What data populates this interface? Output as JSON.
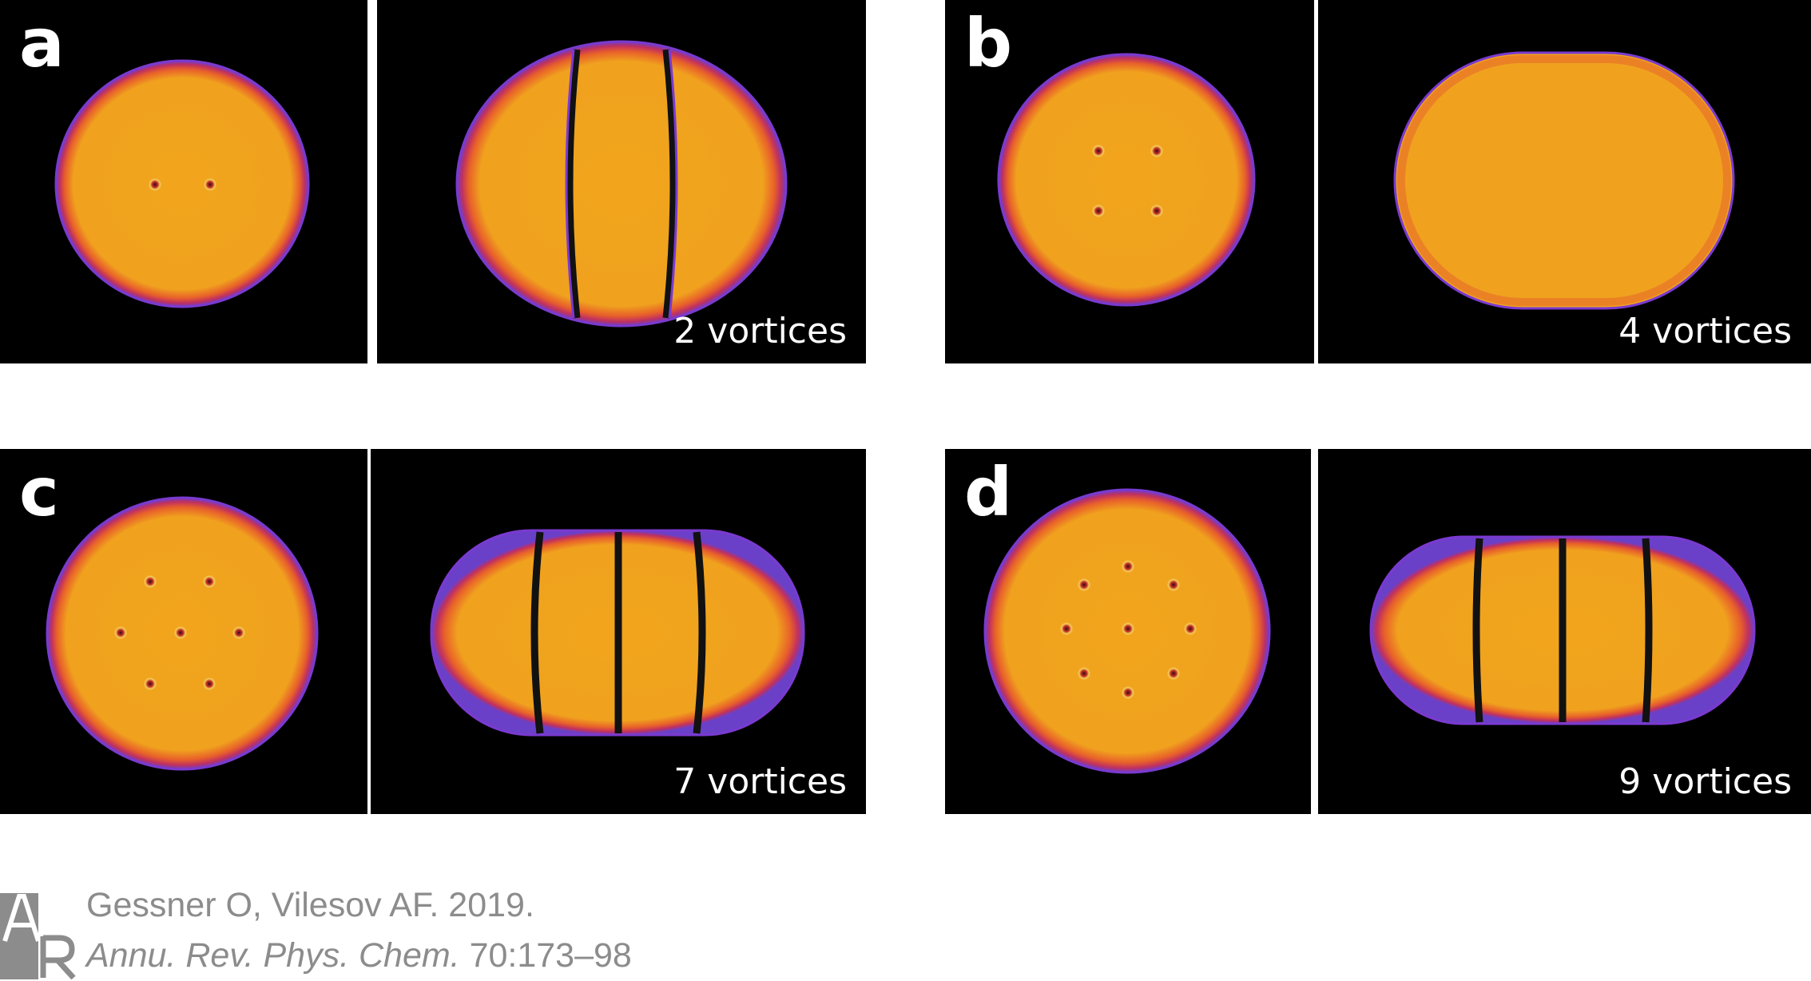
{
  "figure": {
    "panels": [
      {
        "letter": "a",
        "vortices_label": "2 vortices"
      },
      {
        "letter": "b",
        "vortices_label": "4 vortices"
      },
      {
        "letter": "c",
        "vortices_label": "7 vortices"
      },
      {
        "letter": "d",
        "vortices_label": "9 vortices"
      }
    ]
  },
  "citation": {
    "authors_year": "Gessner O, Vilesov AF. 2019.",
    "journal": "Annu. Rev. Phys. Chem.",
    "pages": "70:173–98",
    "logo": "AR"
  },
  "colors": {
    "background": "#000000",
    "droplet_fill": "#f0a51e",
    "droplet_edge": "#7030b0",
    "vortex_core": "#a01010",
    "citation_text": "#8c8c8c"
  }
}
